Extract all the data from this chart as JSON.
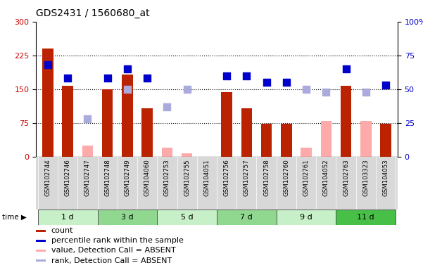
{
  "title": "GDS2431 / 1560680_at",
  "samples": [
    "GSM102744",
    "GSM102746",
    "GSM102747",
    "GSM102748",
    "GSM102749",
    "GSM104060",
    "GSM102753",
    "GSM102755",
    "GSM104051",
    "GSM102756",
    "GSM102757",
    "GSM102758",
    "GSM102760",
    "GSM102761",
    "GSM104052",
    "GSM102763",
    "GSM103323",
    "GSM104053"
  ],
  "groups": [
    {
      "label": "1 d",
      "indices": [
        0,
        1,
        2
      ],
      "color": "#c8f0c8"
    },
    {
      "label": "3 d",
      "indices": [
        3,
        4,
        5
      ],
      "color": "#90d890"
    },
    {
      "label": "5 d",
      "indices": [
        6,
        7,
        8
      ],
      "color": "#c8f0c8"
    },
    {
      "label": "7 d",
      "indices": [
        9,
        10,
        11
      ],
      "color": "#90d890"
    },
    {
      "label": "9 d",
      "indices": [
        12,
        13,
        14
      ],
      "color": "#c8f0c8"
    },
    {
      "label": "11 d",
      "indices": [
        15,
        16,
        17
      ],
      "color": "#48c048"
    }
  ],
  "count_values": [
    240,
    157,
    null,
    150,
    183,
    107,
    null,
    null,
    null,
    143,
    107,
    73,
    73,
    null,
    null,
    157,
    null,
    73
  ],
  "count_absent": [
    null,
    null,
    25,
    null,
    null,
    null,
    20,
    7,
    null,
    null,
    null,
    null,
    null,
    20,
    80,
    null,
    80,
    null
  ],
  "percentile_present": [
    68,
    58,
    null,
    58,
    65,
    58,
    null,
    null,
    null,
    60,
    60,
    55,
    55,
    null,
    null,
    65,
    null,
    53
  ],
  "percentile_absent": [
    null,
    null,
    28,
    null,
    50,
    null,
    37,
    50,
    null,
    null,
    null,
    null,
    null,
    50,
    48,
    null,
    48,
    null
  ],
  "ylim_left": [
    0,
    300
  ],
  "ylim_right": [
    0,
    100
  ],
  "yticks_left": [
    0,
    75,
    150,
    225,
    300
  ],
  "yticks_right": [
    0,
    25,
    50,
    75,
    100
  ],
  "hlines": [
    75,
    150,
    225
  ],
  "color_bar_present": "#bb2200",
  "color_bar_absent": "#ffaaaa",
  "color_dot_present": "#0000cc",
  "color_dot_absent": "#aaaadd",
  "legend_items": [
    {
      "color": "#bb2200",
      "label": "count"
    },
    {
      "color": "#0000cc",
      "label": "percentile rank within the sample"
    },
    {
      "color": "#ffaaaa",
      "label": "value, Detection Call = ABSENT"
    },
    {
      "color": "#aaaadd",
      "label": "rank, Detection Call = ABSENT"
    }
  ]
}
